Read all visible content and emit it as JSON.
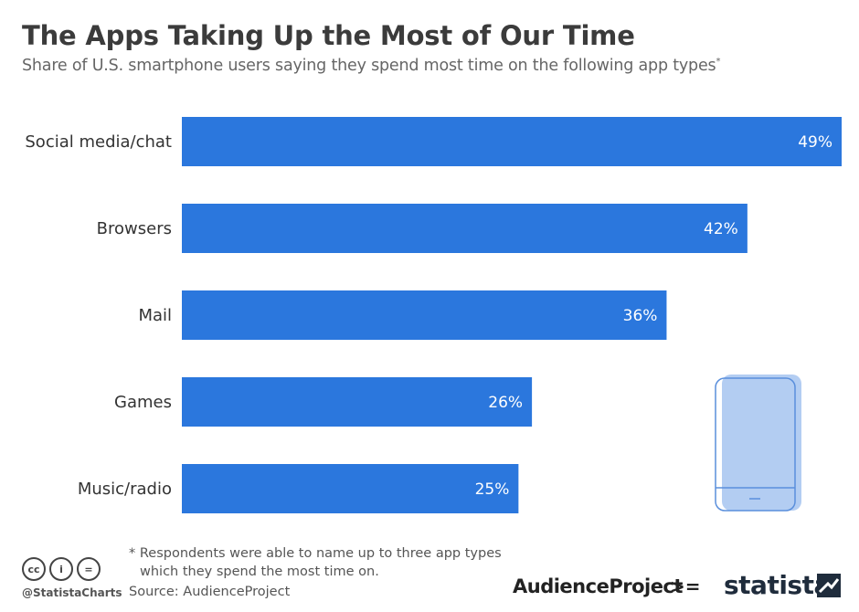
{
  "header": {
    "title": "The Apps Taking Up the Most of Our Time",
    "subtitle": "Share of U.S. smartphone users saying they spend most time on the following app types",
    "subtitle_mark": "*"
  },
  "chart_data": {
    "type": "bar",
    "orientation": "horizontal",
    "categories": [
      "Social media/chat",
      "Browsers",
      "Mail",
      "Games",
      "Music/radio"
    ],
    "values": [
      49,
      42,
      36,
      26,
      25
    ],
    "value_labels": [
      "49%",
      "42%",
      "36%",
      "26%",
      "25%"
    ],
    "unit": "%",
    "xlim": [
      0,
      49
    ],
    "grid": false,
    "bar_color": "#2b77dd"
  },
  "footer": {
    "footnote_line1": "* Respondents were able to name up to three app types",
    "footnote_line2": "which they spend the most time on.",
    "source": "Source: AudienceProject",
    "handle": "@StatistaCharts",
    "cc_icons": [
      "cc-icon",
      "by-icon",
      "nd-icon"
    ],
    "cc_glyphs": [
      "cc",
      "i",
      "="
    ],
    "audience_logo": "AudienceProject",
    "audience_mark": ">=",
    "statista_logo": "statista"
  },
  "colors": {
    "phone_fill": "#b3cdf2",
    "phone_stroke": "#5a8fdc"
  }
}
